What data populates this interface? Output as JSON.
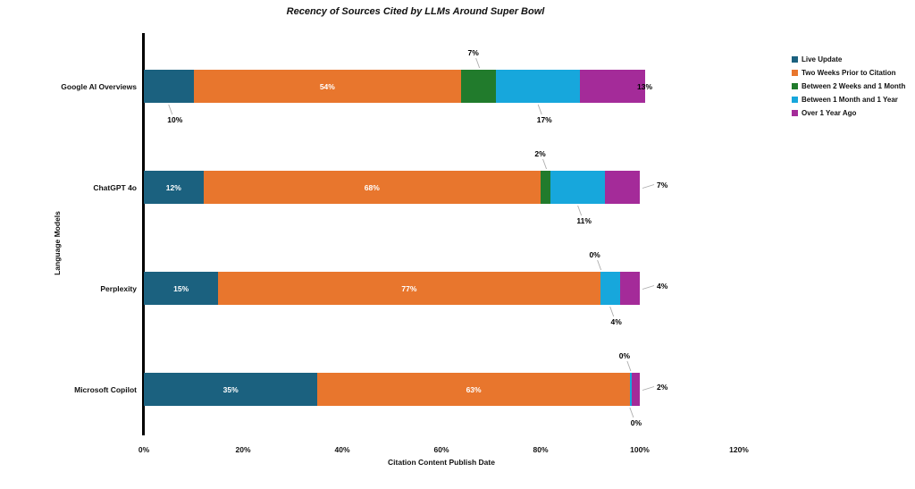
{
  "chart_data": {
    "type": "bar",
    "orientation": "horizontal",
    "stacked": true,
    "title": "Recency of Sources Cited by LLMs Around Super Bowl",
    "xlabel": "Citation Content Publish Date",
    "ylabel": "Language Models",
    "xlim": [
      0,
      120
    ],
    "grid": false,
    "legend_position": "right",
    "axis_color": "#000000",
    "callout_line_color": "#ABABAB",
    "x_ticks": [
      {
        "label": "0%",
        "value": 0
      },
      {
        "label": "20%",
        "value": 20
      },
      {
        "label": "40%",
        "value": 40
      },
      {
        "label": "60%",
        "value": 60
      },
      {
        "label": "80%",
        "value": 80
      },
      {
        "label": "100%",
        "value": 100
      },
      {
        "label": "120%",
        "value": 120
      }
    ],
    "categories": [
      "Google AI Overviews",
      "ChatGPT 4o",
      "Perplexity",
      "Microsoft Copilot"
    ],
    "series": [
      {
        "name": "Live Update",
        "color": "#1B617F",
        "values": [
          10,
          12,
          15,
          35
        ]
      },
      {
        "name": "Two Weeks Prior to Citation",
        "color": "#E8762D",
        "values": [
          54,
          68,
          77,
          63
        ]
      },
      {
        "name": "Between 2 Weeks and 1 Month",
        "color": "#217B2C",
        "values": [
          7,
          2,
          0,
          0
        ]
      },
      {
        "name": "Between 1 Month and 1 Year",
        "color": "#17A7DC",
        "values": [
          17,
          11,
          4,
          0
        ]
      },
      {
        "name": "Over 1 Year Ago",
        "color": "#A42B99",
        "values": [
          13,
          7,
          4,
          2
        ]
      }
    ],
    "data_label_format": "percent",
    "label_placements": [
      [
        "below",
        "inside",
        "above",
        "below",
        "end"
      ],
      [
        "inside",
        "inside",
        "above",
        "below",
        "right"
      ],
      [
        "inside",
        "inside",
        "above",
        "below",
        "right"
      ],
      [
        "inside",
        "inside",
        "above",
        "below",
        "right"
      ]
    ],
    "render_hints": {
      "zero_slivers": [
        {
          "row": 3,
          "series": 3,
          "px": 2
        }
      ]
    }
  }
}
